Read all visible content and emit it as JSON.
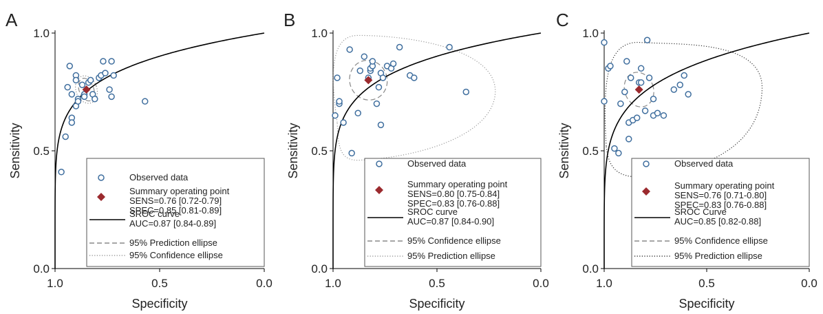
{
  "panel_letters": [
    "A",
    "B",
    "C"
  ],
  "colors": {
    "point": "#3f6e9e",
    "summary": "#9b2a2e",
    "curve": "#000000",
    "ellipse": "#888888",
    "frame": "#555555",
    "text": "#222222"
  },
  "chart_data": [
    {
      "type": "scatter",
      "panel": "A",
      "xlabel": "Specificity",
      "ylabel": "Sensitivity",
      "xlim": [
        1.0,
        0.0
      ],
      "ylim": [
        0.0,
        1.0
      ],
      "xticks": [
        "1.0",
        "0.5",
        "0.0"
      ],
      "yticks": [
        "0.0",
        "0.5",
        "1.0"
      ],
      "auc": 0.87,
      "observed": [
        [
          0.97,
          0.41
        ],
        [
          0.95,
          0.56
        ],
        [
          0.94,
          0.77
        ],
        [
          0.93,
          0.86
        ],
        [
          0.92,
          0.74
        ],
        [
          0.92,
          0.64
        ],
        [
          0.92,
          0.62
        ],
        [
          0.9,
          0.82
        ],
        [
          0.9,
          0.8
        ],
        [
          0.9,
          0.69
        ],
        [
          0.89,
          0.72
        ],
        [
          0.89,
          0.71
        ],
        [
          0.87,
          0.78
        ],
        [
          0.86,
          0.74
        ],
        [
          0.86,
          0.73
        ],
        [
          0.84,
          0.79
        ],
        [
          0.83,
          0.8
        ],
        [
          0.82,
          0.74
        ],
        [
          0.81,
          0.72
        ],
        [
          0.79,
          0.81
        ],
        [
          0.78,
          0.82
        ],
        [
          0.77,
          0.88
        ],
        [
          0.76,
          0.83
        ],
        [
          0.74,
          0.76
        ],
        [
          0.73,
          0.73
        ],
        [
          0.73,
          0.88
        ],
        [
          0.72,
          0.82
        ],
        [
          0.57,
          0.71
        ]
      ],
      "summary": {
        "spec": 0.85,
        "sens": 0.76
      },
      "ellipses": [
        {
          "kind": "small",
          "style": "dashed",
          "rx": 0.035,
          "ry": 0.05
        },
        {
          "kind": "small",
          "style": "dotted",
          "rx": 0.05,
          "ry": 0.06
        }
      ],
      "legend": {
        "observed": "Observed data",
        "summary": "Summary operating point",
        "sens": "SENS=0.76 [0.72-0.79]",
        "spec": "SPEC=0.85 [0.81-0.89]",
        "sroc": "SROC curve",
        "auc": "AUC=0.87 [0.84-0.89]",
        "ellipse1": "95% Prediction ellipse",
        "ellipse1_style": "dashed",
        "ellipse2": "95% Confidence ellipse",
        "ellipse2_style": "dotted"
      }
    },
    {
      "type": "scatter",
      "panel": "B",
      "xlabel": "Specificity",
      "ylabel": "Sensitivity",
      "xlim": [
        1.0,
        0.0
      ],
      "ylim": [
        0.0,
        1.0
      ],
      "xticks": [
        "1.0",
        "0.5",
        "0.0"
      ],
      "yticks": [
        "0.0",
        "0.5",
        "1.0"
      ],
      "auc": 0.87,
      "observed": [
        [
          0.99,
          0.65
        ],
        [
          0.98,
          0.81
        ],
        [
          0.97,
          0.7
        ],
        [
          0.97,
          0.71
        ],
        [
          0.95,
          0.62
        ],
        [
          0.92,
          0.93
        ],
        [
          0.91,
          0.49
        ],
        [
          0.88,
          0.66
        ],
        [
          0.87,
          0.84
        ],
        [
          0.85,
          0.9
        ],
        [
          0.83,
          0.81
        ],
        [
          0.82,
          0.84
        ],
        [
          0.82,
          0.85
        ],
        [
          0.81,
          0.86
        ],
        [
          0.81,
          0.88
        ],
        [
          0.79,
          0.7
        ],
        [
          0.78,
          0.77
        ],
        [
          0.77,
          0.61
        ],
        [
          0.77,
          0.83
        ],
        [
          0.76,
          0.81
        ],
        [
          0.74,
          0.86
        ],
        [
          0.72,
          0.85
        ],
        [
          0.71,
          0.87
        ],
        [
          0.68,
          0.94
        ],
        [
          0.63,
          0.82
        ],
        [
          0.61,
          0.81
        ],
        [
          0.44,
          0.94
        ],
        [
          0.36,
          0.75
        ]
      ],
      "summary": {
        "spec": 0.83,
        "sens": 0.8
      },
      "ellipses": [
        {
          "kind": "small",
          "style": "dashed",
          "rx": 0.09,
          "ry": 0.085
        },
        {
          "kind": "large",
          "style": "dotted"
        }
      ],
      "legend": {
        "observed": "Observed data",
        "summary": "Summary operating point",
        "sens": "SENS=0.80 [0.75-0.84]",
        "spec": "SPEC=0.83 [0.76-0.88]",
        "sroc": "SROC curve",
        "auc": "AUC=0.87 [0.84-0.90]",
        "ellipse1": "95% Confidence ellipse",
        "ellipse1_style": "dashed",
        "ellipse2": "95% Prediction ellipse",
        "ellipse2_style": "dotted"
      }
    },
    {
      "type": "scatter",
      "panel": "C",
      "xlabel": "Specificity",
      "ylabel": "Sensitivity",
      "xlim": [
        1.0,
        0.0
      ],
      "ylim": [
        0.0,
        1.0
      ],
      "xticks": [
        "1.0",
        "0.5",
        "0.0"
      ],
      "yticks": [
        "0.0",
        "0.5",
        "1.0"
      ],
      "auc": 0.85,
      "observed": [
        [
          1.0,
          0.96
        ],
        [
          1.0,
          0.71
        ],
        [
          0.98,
          0.85
        ],
        [
          0.97,
          0.86
        ],
        [
          0.95,
          0.51
        ],
        [
          0.93,
          0.49
        ],
        [
          0.92,
          0.7
        ],
        [
          0.9,
          0.75
        ],
        [
          0.89,
          0.88
        ],
        [
          0.88,
          0.55
        ],
        [
          0.88,
          0.62
        ],
        [
          0.87,
          0.81
        ],
        [
          0.86,
          0.63
        ],
        [
          0.84,
          0.64
        ],
        [
          0.83,
          0.79
        ],
        [
          0.82,
          0.85
        ],
        [
          0.82,
          0.79
        ],
        [
          0.8,
          0.67
        ],
        [
          0.79,
          0.97
        ],
        [
          0.78,
          0.81
        ],
        [
          0.76,
          0.72
        ],
        [
          0.76,
          0.65
        ],
        [
          0.74,
          0.66
        ],
        [
          0.71,
          0.65
        ],
        [
          0.66,
          0.76
        ],
        [
          0.63,
          0.78
        ],
        [
          0.61,
          0.82
        ],
        [
          0.59,
          0.74
        ]
      ],
      "summary": {
        "spec": 0.83,
        "sens": 0.76
      },
      "ellipses": [
        {
          "kind": "small",
          "style": "dashed",
          "rx": 0.07,
          "ry": 0.075
        },
        {
          "kind": "large",
          "style": "dotted"
        }
      ],
      "legend": {
        "observed": "Observed data",
        "summary": "Summary operating point",
        "sens": "SENS=0.76 [0.71-0.80]",
        "spec": "SPEC=0.83 [0.76-0.88]",
        "sroc": "SROC Curve",
        "auc": "AUC=0.85 [0.82-0.88]",
        "ellipse1": "95% Confidence ellipse",
        "ellipse1_style": "dashed",
        "ellipse2": "95% Prediction ellipse",
        "ellipse2_style": "dotted"
      }
    }
  ]
}
